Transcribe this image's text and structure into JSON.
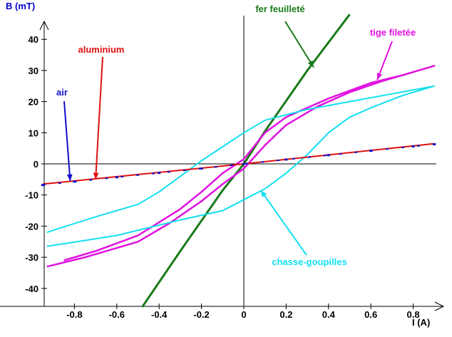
{
  "chart_data": {
    "type": "line",
    "xlabel": "I (A)",
    "ylabel": "B (mT)",
    "xlim": [
      -0.95,
      0.95
    ],
    "ylim": [
      -46,
      48
    ],
    "x_ticks": [
      -0.8,
      -0.6,
      -0.4,
      -0.2,
      0,
      0.2,
      0.4,
      0.6,
      0.8
    ],
    "y_ticks": [
      -40,
      -30,
      -20,
      -10,
      0,
      10,
      20,
      30,
      40
    ],
    "series": [
      {
        "name": "fer feuilleté",
        "color": "#1a7a1a",
        "points": [
          [
            -0.48,
            -46
          ],
          [
            -0.3,
            -28
          ],
          [
            -0.1,
            -8.5
          ],
          [
            0,
            0
          ],
          [
            0.1,
            10.5
          ],
          [
            0.3,
            30
          ],
          [
            0.5,
            48
          ]
        ]
      },
      {
        "name": "tige filetée",
        "color": "#e012e0",
        "points": [
          [
            -0.93,
            -33
          ],
          [
            -0.75,
            -30
          ],
          [
            -0.5,
            -25
          ],
          [
            -0.35,
            -19
          ],
          [
            -0.2,
            -12
          ],
          [
            -0.1,
            -6.5
          ],
          [
            0,
            -1.5
          ],
          [
            0.1,
            6
          ],
          [
            0.2,
            12.5
          ],
          [
            0.35,
            18.5
          ],
          [
            0.5,
            23
          ],
          [
            0.65,
            26.5
          ],
          [
            0.8,
            29.5
          ],
          [
            0.9,
            31.5
          ],
          [
            0.75,
            28.5
          ],
          [
            0.6,
            26
          ],
          [
            0.4,
            21
          ],
          [
            0.2,
            15
          ],
          [
            0.1,
            10
          ],
          [
            0,
            1.5
          ],
          [
            -0.1,
            -3
          ],
          [
            -0.2,
            -9
          ],
          [
            -0.3,
            -14.5
          ],
          [
            -0.5,
            -23
          ],
          [
            -0.7,
            -28
          ],
          [
            -0.85,
            -31
          ]
        ]
      },
      {
        "name": "chasse-goupilles",
        "color": "#12e0f0",
        "points": [
          [
            -0.93,
            -22
          ],
          [
            -0.7,
            -17
          ],
          [
            -0.5,
            -13
          ],
          [
            -0.4,
            -9
          ],
          [
            -0.3,
            -4
          ],
          [
            -0.2,
            1
          ],
          [
            -0.1,
            5.5
          ],
          [
            0,
            10
          ],
          [
            0.1,
            14
          ],
          [
            0.3,
            17.5
          ],
          [
            0.5,
            20
          ],
          [
            0.7,
            22.5
          ],
          [
            0.9,
            25
          ],
          [
            0.75,
            22
          ],
          [
            0.6,
            18
          ],
          [
            0.5,
            15
          ],
          [
            0.4,
            10
          ],
          [
            0.3,
            3
          ],
          [
            0.2,
            -3
          ],
          [
            0.1,
            -8
          ],
          [
            0,
            -11.5
          ],
          [
            -0.1,
            -15
          ],
          [
            -0.3,
            -18
          ],
          [
            -0.6,
            -23
          ],
          [
            -0.93,
            -26.5
          ]
        ]
      },
      {
        "name": "aluminium",
        "color": "#e01010",
        "points": [
          [
            -0.95,
            -6.5
          ],
          [
            0,
            0
          ],
          [
            0.9,
            6.5
          ]
        ]
      },
      {
        "name": "air",
        "color": "#1010c8",
        "points": [
          [
            -0.95,
            -6.8
          ],
          [
            -0.8,
            -5.7
          ],
          [
            -0.6,
            -4.3
          ],
          [
            -0.4,
            -2.9
          ],
          [
            -0.2,
            -1.5
          ],
          [
            0,
            0
          ],
          [
            0.2,
            1.4
          ],
          [
            0.4,
            2.8
          ],
          [
            0.6,
            4.2
          ],
          [
            0.8,
            5.6
          ],
          [
            0.9,
            6.3
          ]
        ]
      }
    ],
    "annotations": [
      {
        "text": "fer feuilleté",
        "color": "#1a7a1a",
        "target": [
          0.33,
          31
        ]
      },
      {
        "text": "tige filetée",
        "color": "#e012e0",
        "target": [
          0.63,
          27
        ]
      },
      {
        "text": "aluminium",
        "color": "#e01010",
        "target": [
          -0.7,
          -5
        ]
      },
      {
        "text": "air",
        "color": "#1010c8",
        "target": [
          -0.82,
          -5.5
        ]
      },
      {
        "text": "chasse-goupilles",
        "color": "#12e0f0",
        "target": [
          0.08,
          -8.5
        ]
      }
    ]
  }
}
